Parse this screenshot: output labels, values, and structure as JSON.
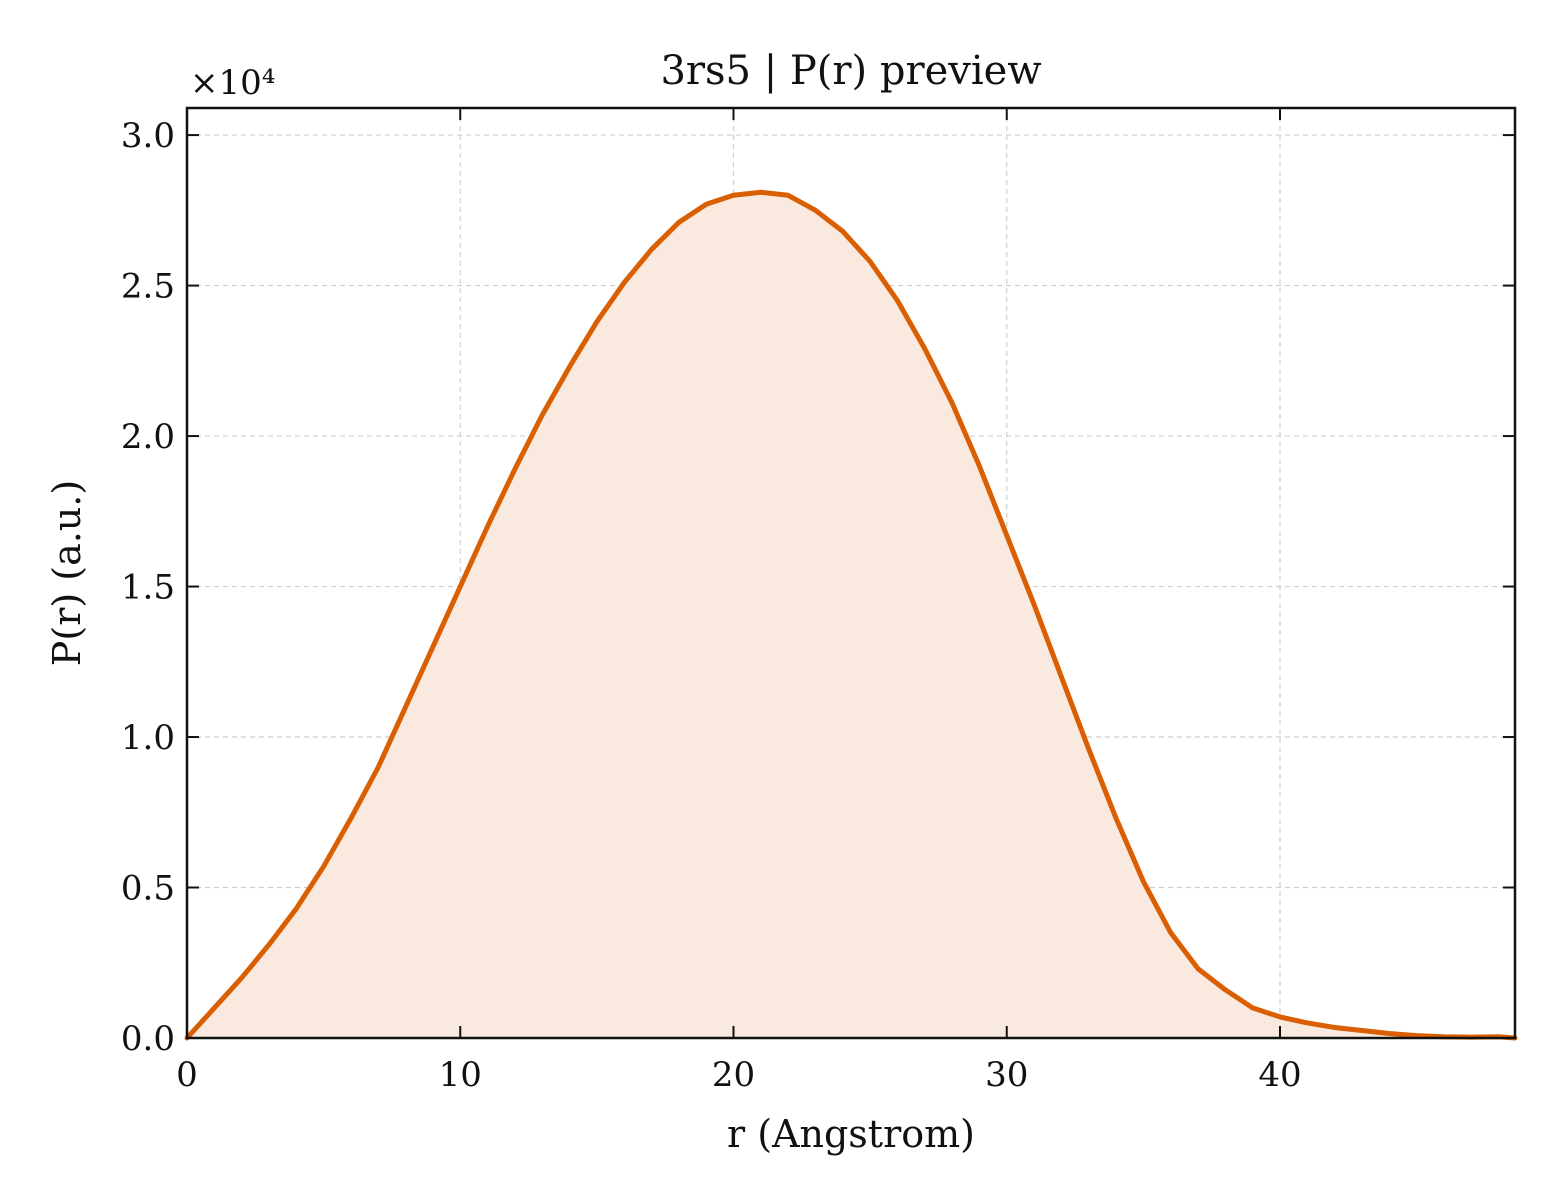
{
  "chart_data": {
    "type": "area",
    "title": "3rs5 | P(r) preview",
    "xlabel": "r (Angstrom)",
    "ylabel": "P(r) (a.u.)",
    "y_offset_label": "×10⁴",
    "xlim": [
      0,
      48.6
    ],
    "ylim": [
      0,
      3.09
    ],
    "x_ticks": [
      0,
      10,
      20,
      30,
      40
    ],
    "x_tick_labels": [
      "0",
      "10",
      "20",
      "30",
      "40"
    ],
    "y_ticks": [
      0,
      0.5,
      1.0,
      1.5,
      2.0,
      2.5,
      3.0
    ],
    "y_tick_labels": [
      "0.0",
      "0.5",
      "1.0",
      "1.5",
      "2.0",
      "2.5",
      "3.0"
    ],
    "grid": true,
    "series": [
      {
        "color": "#d95f02",
        "fill_color": "#f9e9de",
        "x": [
          0,
          1,
          2,
          3,
          4,
          5,
          6,
          7,
          8,
          9,
          10,
          11,
          12,
          13,
          14,
          15,
          16,
          17,
          18,
          19,
          20,
          21,
          22,
          23,
          24,
          25,
          26,
          27,
          28,
          29,
          30,
          31,
          32,
          33,
          34,
          35,
          36,
          37,
          38,
          39,
          40,
          41,
          42,
          43,
          44,
          45,
          46,
          47,
          48,
          48.6
        ],
        "y": [
          0,
          0.1,
          0.2,
          0.31,
          0.43,
          0.57,
          0.73,
          0.9,
          1.1,
          1.3,
          1.5,
          1.7,
          1.89,
          2.07,
          2.23,
          2.38,
          2.51,
          2.62,
          2.71,
          2.77,
          2.8,
          2.81,
          2.8,
          2.75,
          2.68,
          2.58,
          2.45,
          2.29,
          2.11,
          1.9,
          1.67,
          1.44,
          1.2,
          0.96,
          0.73,
          0.52,
          0.35,
          0.23,
          0.16,
          0.1,
          0.07,
          0.05,
          0.035,
          0.025,
          0.015,
          0.008,
          0.004,
          0.003,
          0.004,
          0
        ]
      }
    ]
  }
}
